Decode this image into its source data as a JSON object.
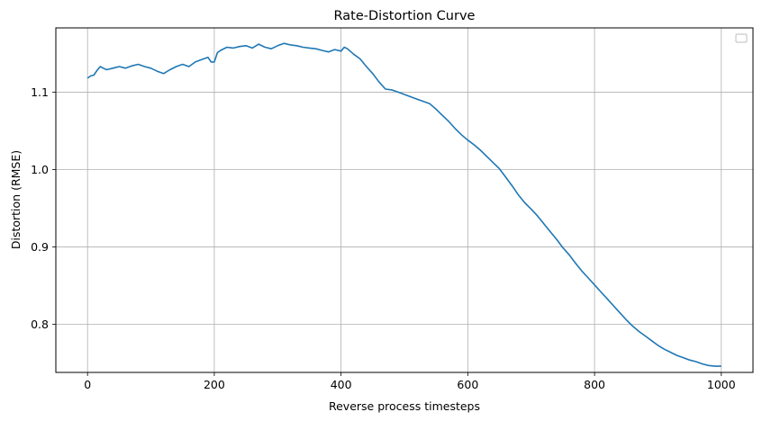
{
  "chart_data": {
    "type": "line",
    "title": "Rate-Distortion Curve",
    "xlabel": "Reverse process timesteps",
    "ylabel": "Distortion (RMSE)",
    "xlim": [
      -50,
      1050
    ],
    "ylim": [
      0.738,
      1.183
    ],
    "xticks": [
      0,
      200,
      400,
      600,
      800,
      1000
    ],
    "yticks": [
      0.8,
      0.9,
      1.0,
      1.1
    ],
    "xtick_labels": [
      "0",
      "200",
      "400",
      "600",
      "800",
      "1000"
    ],
    "ytick_labels": [
      "0.8",
      "0.9",
      "1.0",
      "1.1"
    ],
    "grid": true,
    "legend": "top-right",
    "series": [
      {
        "color": "#1f77b4",
        "x": [
          0,
          5,
          10,
          15,
          20,
          25,
          30,
          40,
          50,
          60,
          70,
          80,
          90,
          100,
          110,
          120,
          130,
          140,
          150,
          160,
          170,
          180,
          190,
          195,
          200,
          205,
          210,
          220,
          230,
          240,
          250,
          260,
          270,
          280,
          290,
          300,
          310,
          320,
          330,
          340,
          350,
          360,
          370,
          380,
          390,
          400,
          405,
          410,
          420,
          430,
          440,
          450,
          460,
          470,
          480,
          490,
          500,
          510,
          520,
          530,
          540,
          550,
          560,
          570,
          580,
          590,
          600,
          610,
          620,
          630,
          640,
          650,
          660,
          670,
          680,
          690,
          700,
          710,
          720,
          730,
          740,
          750,
          760,
          770,
          780,
          790,
          800,
          810,
          820,
          830,
          840,
          850,
          860,
          870,
          880,
          890,
          900,
          910,
          920,
          930,
          940,
          950,
          960,
          970,
          980,
          990,
          1000
        ],
        "y": [
          1.118,
          1.121,
          1.122,
          1.128,
          1.133,
          1.131,
          1.129,
          1.131,
          1.133,
          1.131,
          1.134,
          1.136,
          1.133,
          1.131,
          1.127,
          1.124,
          1.129,
          1.133,
          1.136,
          1.133,
          1.139,
          1.142,
          1.145,
          1.139,
          1.139,
          1.151,
          1.154,
          1.158,
          1.157,
          1.159,
          1.16,
          1.157,
          1.162,
          1.158,
          1.156,
          1.16,
          1.163,
          1.161,
          1.16,
          1.158,
          1.157,
          1.156,
          1.154,
          1.152,
          1.155,
          1.153,
          1.158,
          1.156,
          1.149,
          1.143,
          1.133,
          1.124,
          1.113,
          1.104,
          1.103,
          1.1,
          1.097,
          1.094,
          1.091,
          1.088,
          1.085,
          1.078,
          1.07,
          1.062,
          1.053,
          1.045,
          1.038,
          1.032,
          1.025,
          1.017,
          1.009,
          1.001,
          0.99,
          0.979,
          0.967,
          0.957,
          0.949,
          0.94,
          0.93,
          0.92,
          0.91,
          0.899,
          0.89,
          0.879,
          0.869,
          0.86,
          0.851,
          0.842,
          0.833,
          0.824,
          0.815,
          0.806,
          0.798,
          0.791,
          0.785,
          0.779,
          0.773,
          0.768,
          0.764,
          0.76,
          0.757,
          0.754,
          0.752,
          0.749,
          0.747,
          0.746,
          0.746
        ]
      }
    ]
  }
}
